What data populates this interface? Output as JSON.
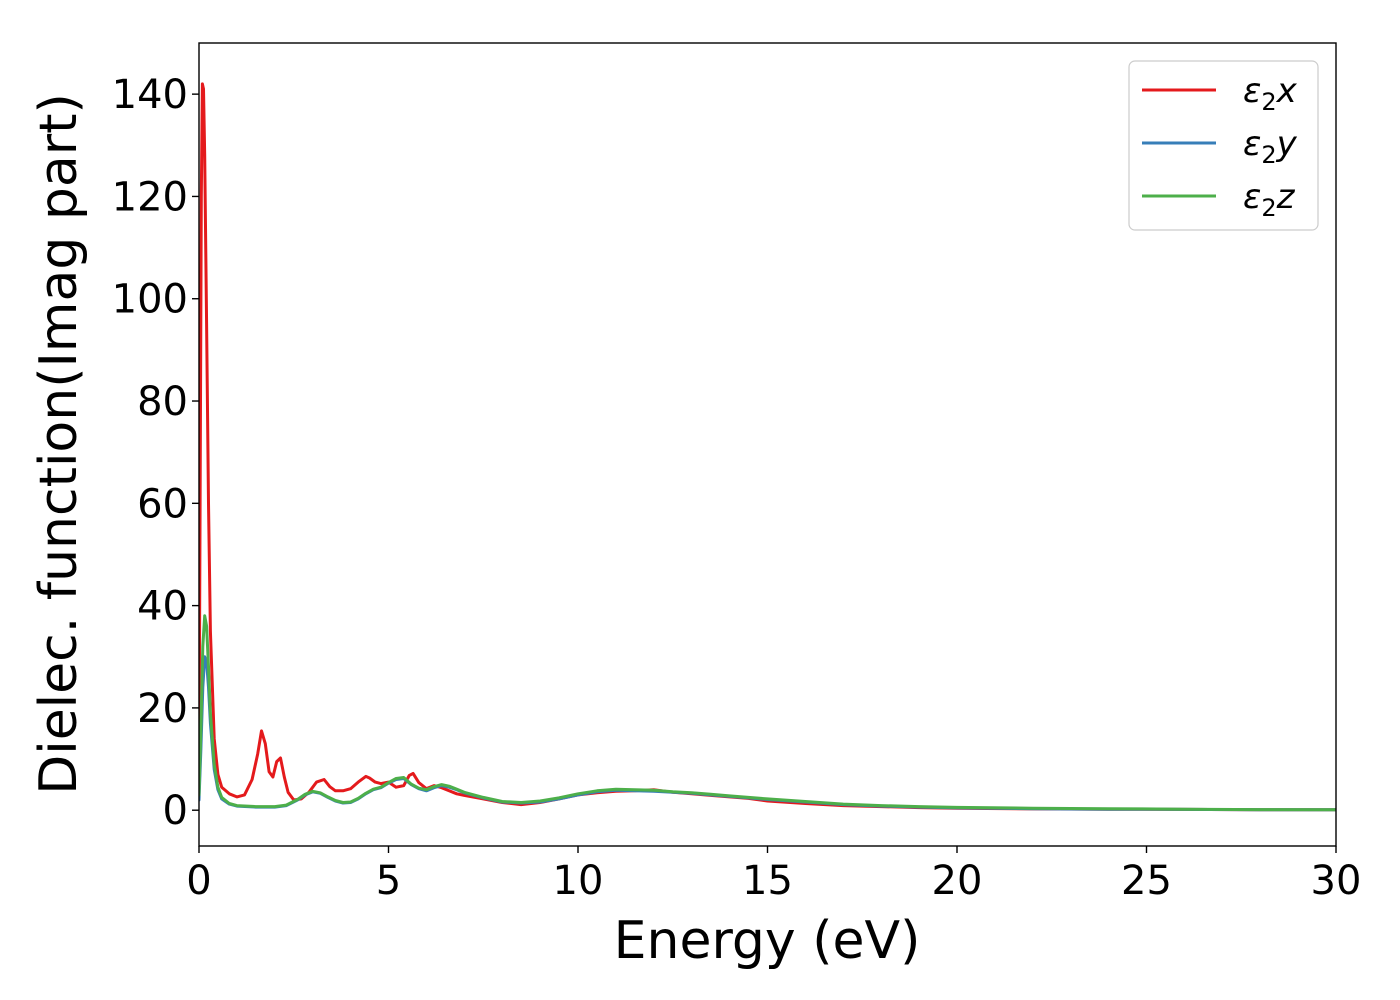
{
  "chart_data": {
    "type": "line",
    "title": "",
    "xlabel": "Energy (eV)",
    "ylabel": "Dielec. function(Imag part)",
    "xlim": [
      0,
      30
    ],
    "ylim": [
      -7,
      150
    ],
    "x_ticks": [
      0,
      5,
      10,
      15,
      20,
      25,
      30
    ],
    "x_tick_labels": [
      "0",
      "5",
      "10",
      "15",
      "20",
      "25",
      "30"
    ],
    "y_ticks": [
      0,
      20,
      40,
      60,
      80,
      100,
      120,
      140
    ],
    "y_tick_labels": [
      "0",
      "20",
      "40",
      "60",
      "80",
      "100",
      "120",
      "140"
    ],
    "grid": false,
    "legend_position": "top-right",
    "series": [
      {
        "name": "ε2x",
        "legend_symbol": "ε",
        "legend_subscript": "2",
        "legend_axis": "x",
        "color": "#e41a1c",
        "x": [
          0,
          0.03,
          0.06,
          0.09,
          0.12,
          0.15,
          0.2,
          0.25,
          0.3,
          0.4,
          0.5,
          0.6,
          0.8,
          1.0,
          1.2,
          1.4,
          1.55,
          1.65,
          1.75,
          1.85,
          1.95,
          2.05,
          2.15,
          2.25,
          2.35,
          2.5,
          2.7,
          2.9,
          3.1,
          3.3,
          3.45,
          3.6,
          3.8,
          4.0,
          4.2,
          4.4,
          4.5,
          4.65,
          4.8,
          5.0,
          5.2,
          5.4,
          5.55,
          5.65,
          5.8,
          6.0,
          6.2,
          6.4,
          6.6,
          6.8,
          7.0,
          7.5,
          8.0,
          8.5,
          9.0,
          9.5,
          10.0,
          10.5,
          11.0,
          11.5,
          12.0,
          12.5,
          13.0,
          13.5,
          14.0,
          14.5,
          15.0,
          16.0,
          17.0,
          18.0,
          19.0,
          20.0,
          22.0,
          24.0,
          26.0,
          28.0,
          30.0
        ],
        "y": [
          8,
          60,
          120,
          142,
          141,
          128,
          95,
          60,
          35,
          14,
          7,
          4.5,
          3.2,
          2.6,
          3.0,
          6.0,
          11,
          15.5,
          13,
          7.5,
          6.5,
          9.5,
          10.2,
          6.5,
          3.5,
          2.0,
          2.2,
          3.5,
          5.5,
          6.0,
          4.6,
          3.8,
          3.8,
          4.2,
          5.5,
          6.6,
          6.3,
          5.5,
          5.2,
          5.5,
          4.5,
          4.8,
          6.8,
          7.2,
          5.4,
          4.2,
          4.8,
          4.4,
          3.8,
          3.2,
          2.9,
          2.2,
          1.5,
          1.1,
          1.5,
          2.2,
          3.0,
          3.4,
          3.7,
          3.8,
          4.0,
          3.5,
          3.2,
          2.9,
          2.6,
          2.3,
          1.8,
          1.3,
          0.9,
          0.7,
          0.5,
          0.4,
          0.25,
          0.2,
          0.15,
          0.1,
          0.08
        ]
      },
      {
        "name": "ε2y",
        "legend_symbol": "ε",
        "legend_subscript": "2",
        "legend_axis": "y",
        "color": "#377eb8",
        "x": [
          0,
          0.05,
          0.1,
          0.15,
          0.2,
          0.25,
          0.3,
          0.4,
          0.5,
          0.6,
          0.8,
          1.0,
          1.5,
          2.0,
          2.3,
          2.6,
          2.8,
          3.0,
          3.2,
          3.4,
          3.6,
          3.8,
          4.0,
          4.2,
          4.4,
          4.6,
          4.8,
          5.0,
          5.2,
          5.4,
          5.6,
          5.8,
          6.0,
          6.2,
          6.4,
          6.6,
          6.8,
          7.0,
          7.5,
          8.0,
          8.5,
          9.0,
          9.5,
          10.0,
          10.5,
          11.0,
          11.5,
          12.0,
          12.5,
          13.0,
          13.5,
          14.0,
          14.5,
          15.0,
          16.0,
          17.0,
          18.0,
          19.0,
          20.0,
          22.0,
          24.0,
          26.0,
          28.0,
          30.0
        ],
        "y": [
          2,
          12,
          24,
          30,
          29,
          24,
          17,
          8,
          4,
          2.2,
          1.2,
          0.8,
          0.6,
          0.6,
          0.9,
          2.0,
          3.0,
          3.6,
          3.3,
          2.5,
          1.8,
          1.4,
          1.5,
          2.2,
          3.2,
          4.0,
          4.4,
          5.3,
          6.0,
          6.2,
          5.0,
          4.2,
          3.8,
          4.4,
          4.8,
          4.5,
          4.0,
          3.4,
          2.4,
          1.6,
          1.4,
          1.6,
          2.2,
          3.0,
          3.6,
          3.9,
          3.8,
          3.7,
          3.5,
          3.3,
          3.0,
          2.7,
          2.4,
          2.1,
          1.6,
          1.1,
          0.8,
          0.6,
          0.45,
          0.3,
          0.2,
          0.15,
          0.1,
          0.08
        ]
      },
      {
        "name": "ε2z",
        "legend_symbol": "ε",
        "legend_subscript": "2",
        "legend_axis": "z",
        "color": "#4daf4a",
        "x": [
          0,
          0.05,
          0.1,
          0.15,
          0.2,
          0.25,
          0.3,
          0.4,
          0.5,
          0.6,
          0.8,
          1.0,
          1.5,
          2.0,
          2.3,
          2.6,
          2.8,
          3.0,
          3.2,
          3.4,
          3.6,
          3.8,
          4.0,
          4.2,
          4.4,
          4.6,
          4.8,
          5.0,
          5.2,
          5.4,
          5.6,
          5.8,
          6.0,
          6.2,
          6.4,
          6.6,
          6.8,
          7.0,
          7.5,
          8.0,
          8.5,
          9.0,
          9.5,
          10.0,
          10.5,
          11.0,
          11.5,
          12.0,
          12.5,
          13.0,
          13.5,
          14.0,
          14.5,
          15.0,
          16.0,
          17.0,
          18.0,
          19.0,
          20.0,
          22.0,
          24.0,
          26.0,
          28.0,
          30.0
        ],
        "y": [
          3,
          16,
          32,
          38,
          36,
          28,
          19,
          9,
          4.5,
          2.5,
          1.3,
          0.9,
          0.7,
          0.7,
          1.0,
          2.1,
          3.1,
          3.7,
          3.4,
          2.6,
          1.9,
          1.5,
          1.6,
          2.3,
          3.3,
          4.1,
          4.5,
          5.4,
          6.2,
          6.4,
          5.1,
          4.3,
          4.0,
          4.6,
          5.0,
          4.7,
          4.1,
          3.5,
          2.5,
          1.7,
          1.5,
          1.8,
          2.4,
          3.2,
          3.8,
          4.1,
          4.0,
          3.9,
          3.6,
          3.4,
          3.1,
          2.8,
          2.5,
          2.2,
          1.7,
          1.2,
          0.9,
          0.7,
          0.55,
          0.4,
          0.3,
          0.2,
          0.12,
          0.08
        ]
      }
    ]
  }
}
